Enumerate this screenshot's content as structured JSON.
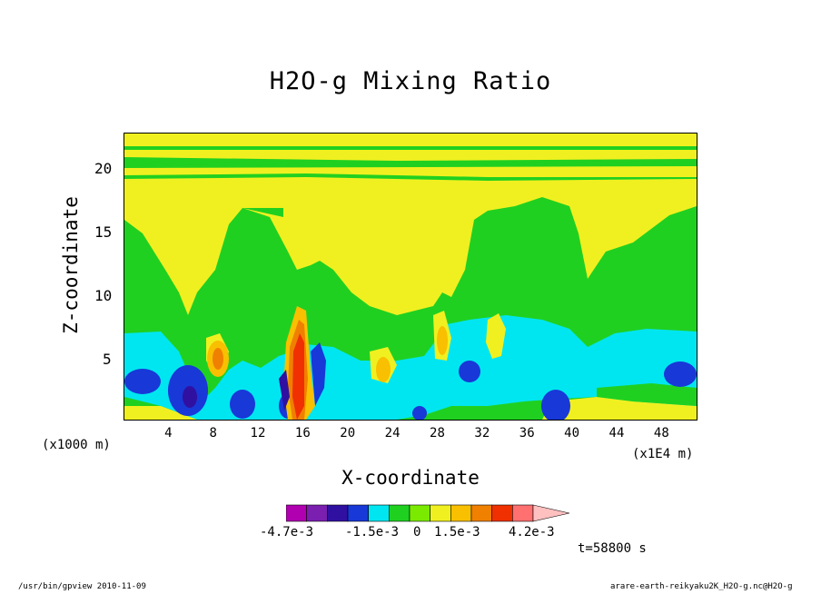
{
  "chart_data": {
    "type": "heatmap",
    "title": "H2O-g Mixing Ratio",
    "xlabel": "X-coordinate",
    "ylabel": "Z-coordinate",
    "x_unit_left": "(x1000 m)",
    "x_unit_right": "(x1E4 m)",
    "x_ticks": [
      "4",
      "8",
      "12",
      "16",
      "20",
      "24",
      "28",
      "32",
      "36",
      "40",
      "44",
      "48"
    ],
    "x_tick_values": [
      4,
      8,
      12,
      16,
      20,
      24,
      28,
      32,
      36,
      40,
      44,
      48
    ],
    "xlim": [
      0,
      51.2
    ],
    "y_ticks": [
      "5",
      "10",
      "15",
      "20"
    ],
    "y_tick_values": [
      5,
      10,
      15,
      20
    ],
    "ylim": [
      0.2,
      22.8
    ],
    "colorbar": {
      "colors": [
        "#b000b0",
        "#7a1fb0",
        "#3010a0",
        "#1838d8",
        "#00e6f0",
        "#20d020",
        "#7aea00",
        "#f0f020",
        "#f8c000",
        "#f08000",
        "#f03000",
        "#ff7070",
        "#ffc0c0"
      ],
      "labels": [
        "-4.7e-3",
        "-1.5e-3",
        "0",
        "1.5e-3",
        "4.2e-3"
      ],
      "label_values": [
        -0.0047,
        -0.0015,
        0,
        0.0015,
        0.0042
      ]
    },
    "regions": [
      {
        "level": "background",
        "color": "#20d020"
      },
      {
        "level": "top_band",
        "color": "#f0f020",
        "z": [
          20.5,
          22.8
        ]
      },
      {
        "level": "upper_yellow",
        "color": "#f0f020",
        "z": [
          12,
          20
        ]
      },
      {
        "level": "low_cyan",
        "color": "#00e6f0",
        "z": [
          1.5,
          7
        ]
      },
      {
        "level": "blue_blobs",
        "color": "#1838d8"
      },
      {
        "level": "core_red",
        "color": "#f03000",
        "x": [
          14.5,
          16.5
        ]
      }
    ],
    "time": "t=58800 s"
  },
  "footer": {
    "left": "/usr/bin/gpview  2010-11-09",
    "right": "arare-earth-reikyaku2K_H2O-g.nc@H2O-g"
  }
}
